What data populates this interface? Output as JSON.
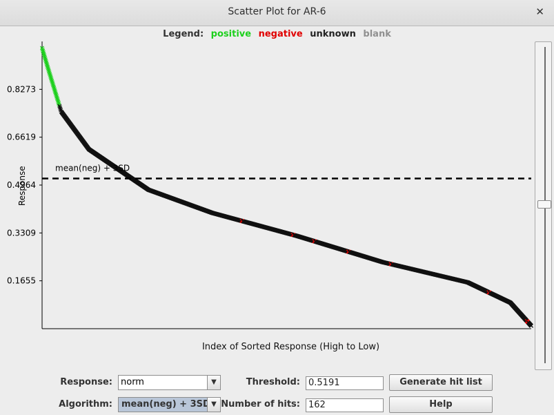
{
  "window": {
    "title": "Scatter Plot for AR-6"
  },
  "legend": {
    "label": "Legend:",
    "items": [
      {
        "label": "positive",
        "color": "#1ed01e"
      },
      {
        "label": "negative",
        "color": "#e00000"
      },
      {
        "label": "unknown",
        "color": "#222222"
      },
      {
        "label": "blank",
        "color": "#909090"
      }
    ]
  },
  "controls": {
    "response_label": "Response:",
    "response_value": "norm",
    "algorithm_label": "Algorithm:",
    "algorithm_value": "mean(neg) + 3SD",
    "threshold_label": "Threshold:",
    "threshold_value": "0.5191",
    "hits_label": "Number of hits:",
    "hits_value": "162",
    "generate_button": "Generate hit list",
    "help_button": "Help"
  },
  "chart_data": {
    "type": "scatter",
    "xlabel": "Index of Sorted Response (High to Low)",
    "ylabel": "Response",
    "yticks": [
      "0.8273",
      "0.6619",
      "0.4964",
      "0.3309",
      "0.1655"
    ],
    "ylim": [
      0,
      0.9928
    ],
    "n_points": 1150,
    "threshold": {
      "value": 0.5191,
      "label": "mean(neg) + 3SD",
      "style": "dashed"
    },
    "curve": [
      {
        "x": 0,
        "y": 0.97
      },
      {
        "x": 14,
        "y": 0.9
      },
      {
        "x": 45,
        "y": 0.75
      },
      {
        "x": 110,
        "y": 0.62
      },
      {
        "x": 180,
        "y": 0.55
      },
      {
        "x": 250,
        "y": 0.48
      },
      {
        "x": 400,
        "y": 0.4
      },
      {
        "x": 600,
        "y": 0.32
      },
      {
        "x": 800,
        "y": 0.23
      },
      {
        "x": 1000,
        "y": 0.16
      },
      {
        "x": 1100,
        "y": 0.09
      },
      {
        "x": 1149,
        "y": 0.01
      }
    ],
    "positive_index_max": 40,
    "negative_indices": [
      470,
      590,
      640,
      720,
      820,
      1050,
      1140
    ],
    "grid": false,
    "legend_position": "top"
  }
}
